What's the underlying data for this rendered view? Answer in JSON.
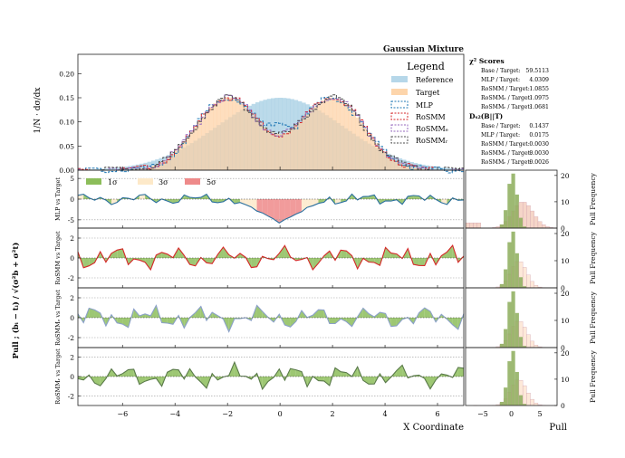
{
  "figure_title": "Gaussian Mixture",
  "legend": {
    "title": "Legend",
    "entries": [
      "Reference",
      "Target",
      "MLP",
      "RoSMM",
      "RoSMMₑ",
      "RoSMMᵣ"
    ]
  },
  "sigma_legend": [
    "1σ",
    "3σ",
    "5σ"
  ],
  "stats": {
    "chi2_header": "χ² Scores",
    "chi2": [
      {
        "label": "Base / Target:",
        "value": "59.5113"
      },
      {
        "label": "MLP / Target:",
        "value": "4.0309"
      },
      {
        "label": "RoSMM / Target:",
        "value": "1.0855"
      },
      {
        "label": "RoSMMₑ / Target:",
        "value": "1.0975"
      },
      {
        "label": "RoSMMᵣ / Target:",
        "value": "1.0681"
      }
    ],
    "ds_header": "Dₛ₂(B||T)",
    "ds": [
      {
        "label": "Base / Target:",
        "value": "0.1437"
      },
      {
        "label": "MLP / Target:",
        "value": "0.0175"
      },
      {
        "label": "RoSMM / Target:",
        "value": "0.0030"
      },
      {
        "label": "RoSMMₑ / Target:",
        "value": "0.0030"
      },
      {
        "label": "RoSMMᵣ / Target:",
        "value": "0.0026"
      }
    ]
  },
  "labels": {
    "density_ylabel": "1/N · dσ/dx",
    "pull_ylabel": "Pull ; (bᵢ − tᵢ) / √(σ²b + σ²t)",
    "xlabel": "X Coordinate",
    "pull_xlabel": "Pull",
    "pull_freq_label": "Pull Frequency",
    "row_labels": [
      "MLP vs Target",
      "RoSMM vs Target",
      "RoSMMₑ vs Target",
      "RoSMMᵣ vs Target"
    ]
  },
  "colors": {
    "reference": "#9ecae1",
    "target": "#fdd0a2",
    "mlp": "#1f77b4",
    "rosmm": "#d62728",
    "rosmm_c": "#9467bd",
    "rosmm_r": "#4d4d4d",
    "sigma1": "#8cbd5a",
    "sigma3": "#fde9c9",
    "sigma5": "#ee8a8a",
    "pull_line_mlp": "#2a6f9e",
    "pull_line_rosmm": "#d62728",
    "pull_line_c": "#8aa0c8",
    "pull_line_r": "#5a7a4a"
  },
  "chart_data": {
    "type": "histogram_with_pull_panels",
    "x_range": [
      -7.7,
      7.0
    ],
    "x_ticks": [
      -6,
      -4,
      -2,
      0,
      2,
      4,
      6
    ],
    "density": {
      "ylim": [
        0,
        0.24
      ],
      "y_ticks": [
        0.0,
        0.05,
        0.1,
        0.15,
        0.2
      ],
      "y_tick_labels": [
        "0.00",
        "0.05",
        "0.10",
        "0.15",
        "0.20"
      ],
      "reference": {
        "mu": 0.0,
        "sigma": 2.4,
        "peak": 0.15
      },
      "target": {
        "components": [
          {
            "mu": -2.0,
            "sigma": 1.2,
            "peak": 0.15
          },
          {
            "mu": 2.0,
            "sigma": 1.2,
            "peak": 0.15
          }
        ]
      },
      "mlp_center_dip": 0.1,
      "rosmm_center_dip": 0.06
    },
    "pull_panels": [
      {
        "name": "MLP",
        "ylim": [
          -7,
          7
        ],
        "y_ticks": [
          -5,
          0,
          5
        ],
        "dip_value": -5.5
      },
      {
        "name": "RoSMM",
        "ylim": [
          -3,
          3
        ],
        "y_ticks": [
          -2,
          0,
          2
        ]
      },
      {
        "name": "RoSMMₑ",
        "ylim": [
          -3,
          3
        ],
        "y_ticks": [
          -2,
          0,
          2
        ]
      },
      {
        "name": "RoSMMᵣ",
        "ylim": [
          -3,
          3
        ],
        "y_ticks": [
          -2,
          0,
          2
        ]
      }
    ],
    "pull_hist": {
      "x_range": [
        -8,
        8
      ],
      "x_ticks": [
        -5,
        0,
        5
      ],
      "y_ticks": [
        0,
        10,
        20
      ],
      "ylim": [
        0,
        22
      ],
      "reference_peak": 21,
      "model_peak": 18
    }
  }
}
